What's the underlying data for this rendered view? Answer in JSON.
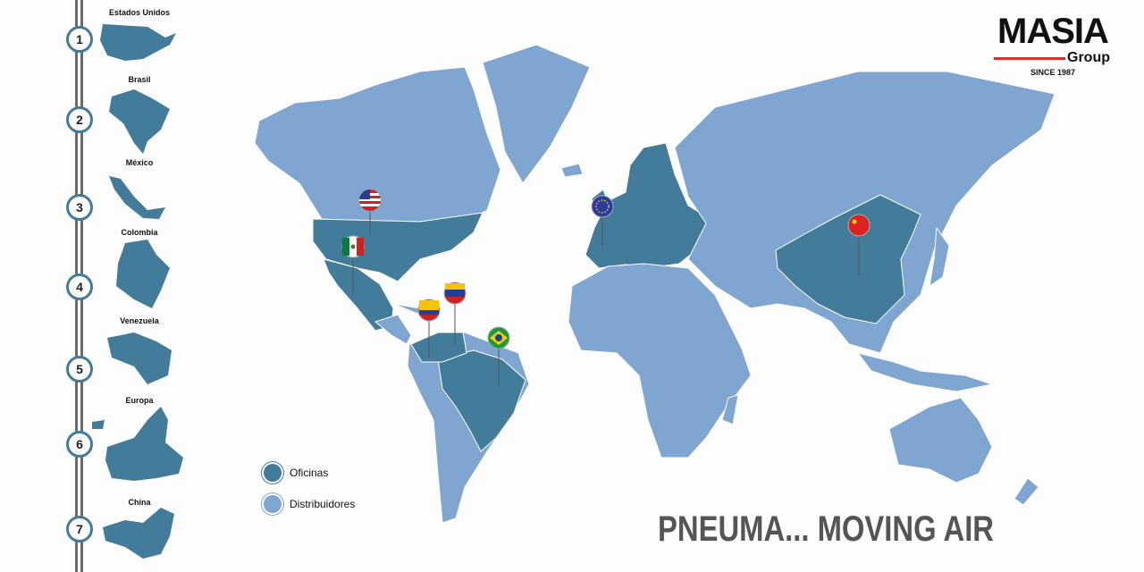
{
  "brand": {
    "name": "MASIA",
    "sub": "Group",
    "since": "SINCE 1987",
    "accent": "#d9302a"
  },
  "colors": {
    "oficinas": "#437c9a",
    "distribuidores": "#7ea6d1"
  },
  "sidebar": {
    "items": [
      {
        "n": "1",
        "label": "Estados Unidos"
      },
      {
        "n": "2",
        "label": "Brasil"
      },
      {
        "n": "3",
        "label": "México"
      },
      {
        "n": "4",
        "label": "Colombia"
      },
      {
        "n": "5",
        "label": "Venezuela"
      },
      {
        "n": "6",
        "label": "Europa"
      },
      {
        "n": "7",
        "label": "China"
      }
    ]
  },
  "legend": {
    "oficinas": "Oficinas",
    "distribuidores": "Distribuidores"
  },
  "slogan": "PNEUMA... MOVING AIR",
  "pins": [
    "usa-flag",
    "mexico-flag",
    "venezuela-flag",
    "colombia-flag",
    "brazil-flag",
    "eu-flag",
    "china-flag"
  ]
}
